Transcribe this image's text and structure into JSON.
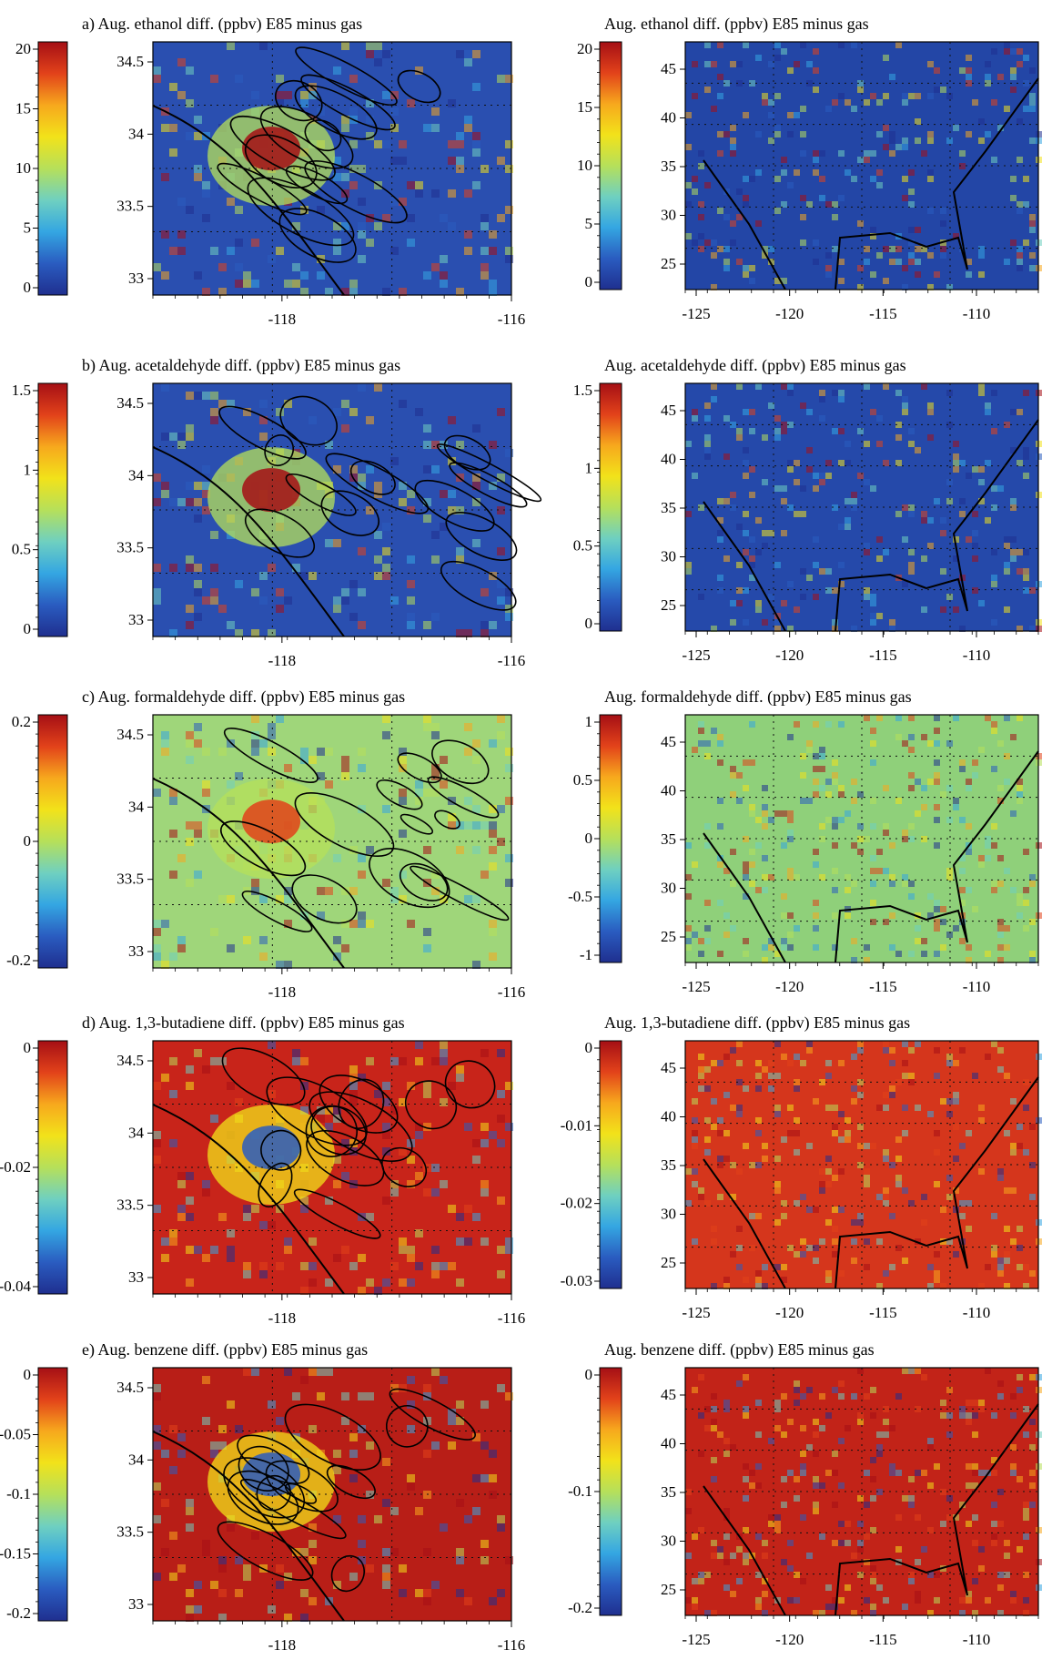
{
  "figure": {
    "background": "#ffffff",
    "colormap": [
      "#1f2f8f",
      "#2a5cc0",
      "#34a6e2",
      "#6fd0c0",
      "#b6e05a",
      "#f2e21a",
      "#f7a81d",
      "#e2421a",
      "#a50f15"
    ],
    "panels": [
      {
        "id": "a-left",
        "title": "a) Aug. ethanol diff. (ppbv) E85 minus gas",
        "region": "Southern California",
        "field_base_color": "#2a4fb0",
        "cbar_ticks": [
          "20",
          "15",
          "10",
          "5",
          "0"
        ],
        "lat_ticks": [
          "34.5",
          "34",
          "33.5",
          "33"
        ],
        "lon_ticks": [
          "-118",
          "-116"
        ]
      },
      {
        "id": "a-right",
        "title": "Aug. ethanol diff. (ppbv) E85 minus gas",
        "region": "Contiguous United States",
        "field_base_color": "#2346a6",
        "cbar_ticks": [
          "20",
          "15",
          "10",
          "5",
          "0"
        ],
        "lat_ticks": [
          "45",
          "40",
          "35",
          "30",
          "25"
        ],
        "lon_ticks": [
          "-125",
          "-120",
          "-115",
          "-110"
        ]
      },
      {
        "id": "b-left",
        "title": "b) Aug. acetaldehyde diff. (ppbv) E85 minus gas",
        "region": "Southern California",
        "field_base_color": "#2a4fb0",
        "cbar_ticks": [
          "1.5",
          "1",
          "0.5",
          "0"
        ],
        "lat_ticks": [
          "34.5",
          "34",
          "33.5",
          "33"
        ],
        "lon_ticks": [
          "-118",
          "-116"
        ]
      },
      {
        "id": "b-right",
        "title": "Aug. acetaldehyde diff. (ppbv) E85 minus gas",
        "region": "Contiguous United States",
        "field_base_color": "#2549aa",
        "cbar_ticks": [
          "1.5",
          "1",
          "0.5",
          "0"
        ],
        "lat_ticks": [
          "45",
          "40",
          "35",
          "30",
          "25"
        ],
        "lon_ticks": [
          "-125",
          "-120",
          "-115",
          "-110"
        ]
      },
      {
        "id": "c-left",
        "title": "c) Aug. formaldehyde diff. (ppbv) E85 minus gas",
        "region": "Southern California",
        "field_base_color": "#9fd67a",
        "cbar_ticks": [
          "0.2",
          "0",
          "-0.2"
        ],
        "lat_ticks": [
          "34.5",
          "34",
          "33.5",
          "33"
        ],
        "lon_ticks": [
          "-118",
          "-116"
        ]
      },
      {
        "id": "c-right",
        "title": "Aug. formaldehyde diff. (ppbv) E85 minus gas",
        "region": "Contiguous United States",
        "field_base_color": "#8fd07a",
        "cbar_ticks": [
          "1",
          "0.5",
          "0",
          "-0.5",
          "-1"
        ],
        "lat_ticks": [
          "45",
          "40",
          "35",
          "30",
          "25"
        ],
        "lon_ticks": [
          "-125",
          "-120",
          "-115",
          "-110"
        ]
      },
      {
        "id": "d-left",
        "title": "d) Aug. 1,3-butadiene diff. (ppbv) E85 minus gas",
        "region": "Southern California",
        "field_base_color": "#c8241a",
        "cbar_ticks": [
          "0",
          "-0.02",
          "-0.04"
        ],
        "lat_ticks": [
          "34.5",
          "34",
          "33.5",
          "33"
        ],
        "lon_ticks": [
          "-118",
          "-116"
        ]
      },
      {
        "id": "d-right",
        "title": "Aug. 1,3-butadiene diff. (ppbv) E85 minus gas",
        "region": "Contiguous United States",
        "field_base_color": "#d5361c",
        "cbar_ticks": [
          "0",
          "-0.01",
          "-0.02",
          "-0.03"
        ],
        "lat_ticks": [
          "45",
          "40",
          "35",
          "30",
          "25"
        ],
        "lon_ticks": [
          "-125",
          "-120",
          "-115",
          "-110"
        ]
      },
      {
        "id": "e-left",
        "title": "e) Aug. benzene diff. (ppbv) E85 minus gas",
        "region": "Southern California",
        "field_base_color": "#b81e17",
        "cbar_ticks": [
          "0",
          "-0.05",
          "-0.1",
          "-0.15",
          "-0.2"
        ],
        "lat_ticks": [
          "34.5",
          "34",
          "33.5",
          "33"
        ],
        "lon_ticks": [
          "-118",
          "-116"
        ]
      },
      {
        "id": "e-right",
        "title": "Aug. benzene diff. (ppbv) E85 minus gas",
        "region": "Contiguous United States",
        "field_base_color": "#c22318",
        "cbar_ticks": [
          "0",
          "-0.1",
          "-0.2"
        ],
        "lat_ticks": [
          "45",
          "40",
          "35",
          "30",
          "25"
        ],
        "lon_ticks": [
          "-125",
          "-120",
          "-115",
          "-110"
        ]
      }
    ]
  }
}
